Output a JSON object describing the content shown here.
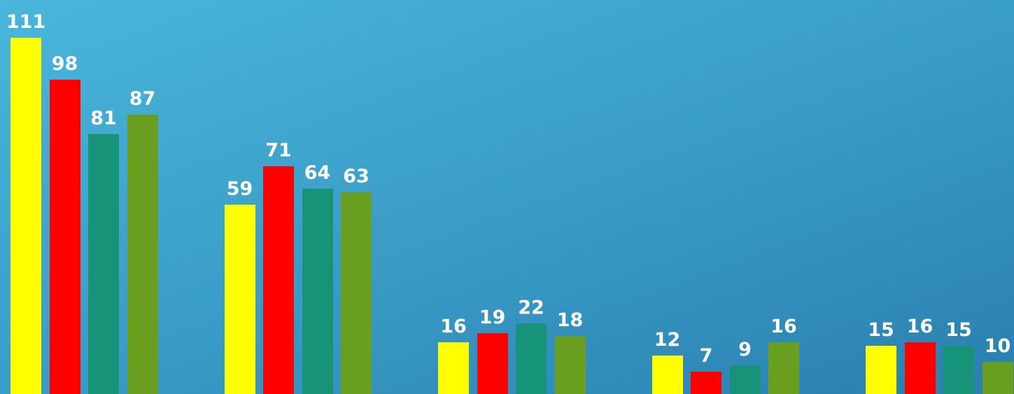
{
  "chart_data": {
    "type": "bar",
    "categories": [
      "",
      "",
      "",
      "",
      ""
    ],
    "series": [
      {
        "color": "#ffff00",
        "values": [
          111,
          59,
          16,
          12,
          15
        ]
      },
      {
        "color": "#ff0000",
        "values": [
          98,
          71,
          19,
          7,
          16
        ]
      },
      {
        "color": "#169378",
        "values": [
          81,
          64,
          22,
          9,
          15
        ]
      },
      {
        "color": "#6a9e21",
        "values": [
          87,
          63,
          18,
          16,
          10
        ]
      }
    ],
    "data_labels": true,
    "legend": "none",
    "grid": false,
    "axes_visible": false,
    "ylim": [
      0,
      111
    ]
  }
}
